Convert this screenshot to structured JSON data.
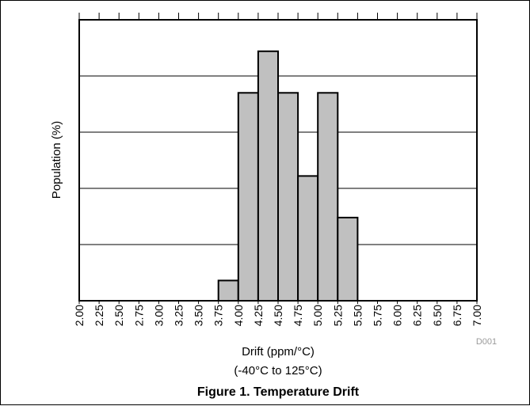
{
  "chart_data": {
    "type": "bar",
    "title": "",
    "xlabel": "Drift (ppm/°C)",
    "xlabel_sub": "(-40°C to 125°C)",
    "ylabel": "Population (%)",
    "x_ticks": [
      "2.00",
      "2.25",
      "2.50",
      "2.75",
      "3.00",
      "3.25",
      "3.50",
      "3.75",
      "4.00",
      "4.25",
      "4.50",
      "4.75",
      "5.00",
      "5.25",
      "5.50",
      "5.75",
      "6.00",
      "6.25",
      "6.50",
      "6.75",
      "7.00"
    ],
    "xlim": [
      2.0,
      7.0
    ],
    "ylim": [
      0,
      25
    ],
    "y_gridlines": [
      5,
      10,
      15,
      20,
      25
    ],
    "y_tick_labels_shown": false,
    "bins": [
      {
        "x0": 3.75,
        "x1": 4.0,
        "value": 1.8
      },
      {
        "x0": 4.0,
        "x1": 4.25,
        "value": 18.5
      },
      {
        "x0": 4.25,
        "x1": 4.5,
        "value": 22.2
      },
      {
        "x0": 4.5,
        "x1": 4.75,
        "value": 18.5
      },
      {
        "x0": 4.75,
        "x1": 5.0,
        "value": 11.1
      },
      {
        "x0": 5.0,
        "x1": 5.25,
        "value": 18.5
      },
      {
        "x0": 5.25,
        "x1": 5.5,
        "value": 7.4
      }
    ],
    "bar_color": "#c0c0c0",
    "grid": true
  },
  "figure_id": "D001",
  "caption": "Figure 1. Temperature Drift"
}
